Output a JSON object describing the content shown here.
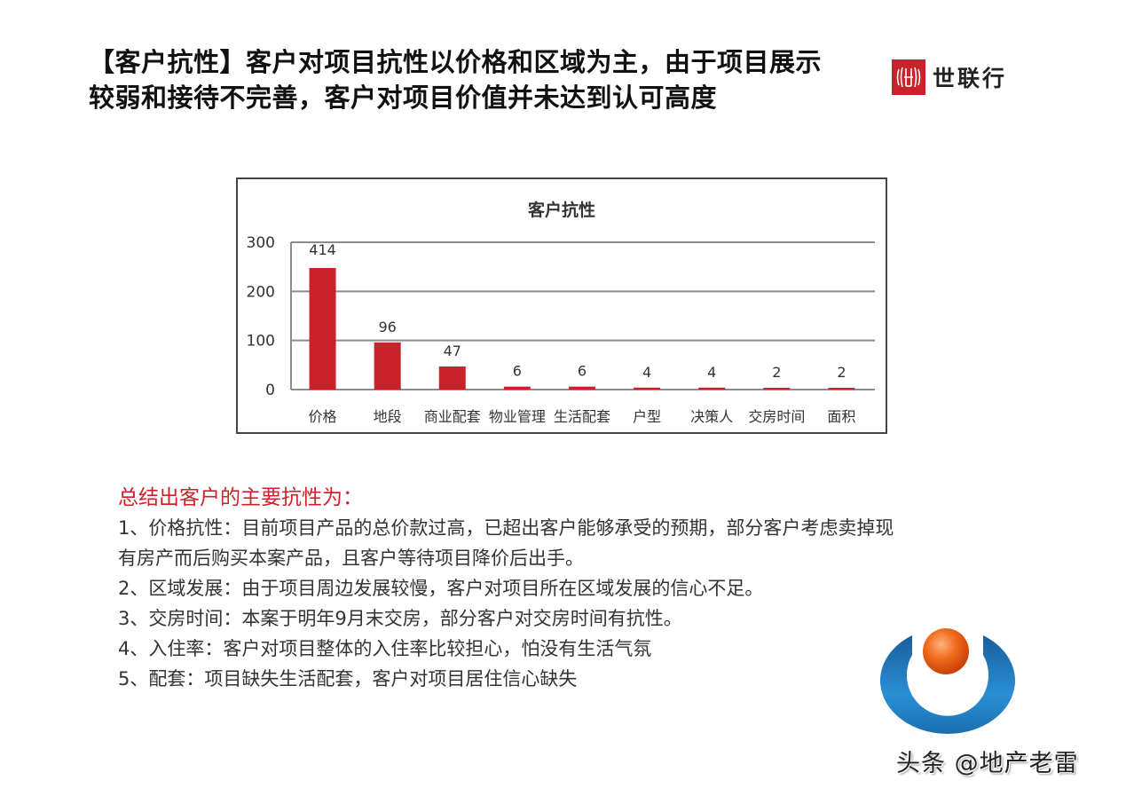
{
  "title": {
    "line1": "【客户抗性】客户对项目抗性以价格和区域为主，由于项目展示",
    "line2": "较弱和接待不完善，客户对项目价值并未达到认可高度"
  },
  "brand": {
    "name": "世联行",
    "mark_color": "#c8222a"
  },
  "chart_data": {
    "type": "bar",
    "title": "客户抗性",
    "categories": [
      "价格",
      "地段",
      "商业配套",
      "物业管理",
      "生活配套",
      "户型",
      "决策人",
      "交房时间",
      "面积"
    ],
    "values": [
      414,
      96,
      47,
      6,
      6,
      4,
      4,
      2,
      2
    ],
    "data_labels": [
      "414",
      "96",
      "47",
      "6",
      "6",
      "4",
      "4",
      "2",
      "2"
    ],
    "xlabel": "",
    "ylabel": "",
    "ylim": [
      0,
      300
    ],
    "yticks": [
      "0",
      "100",
      "200",
      "300"
    ],
    "grid": true,
    "legend": "none",
    "bar_color": "#c8222a",
    "note": "第一根柱（价格, 414）超出坐标轴上限，显示被截断"
  },
  "summary": {
    "heading": "总结出客户的主要抗性为：",
    "items": [
      "1、价格抗性：目前项目产品的总价款过高，已超出客户能够承受的预期，部分客户考虑卖掉现",
      "有房产而后购买本案产品，且客户等待项目降价后出手。",
      "2、区域发展：由于项目周边发展较慢，客户对项目所在区域发展的信心不足。",
      "3、交房时间：本案于明年9月末交房，部分客户对交房时间有抗性。",
      "4、入住率：客户对项目整体的入住率比较担心，怕没有生活气氛",
      "5、配套：项目缺失生活配套，客户对项目居住信心缺失"
    ]
  },
  "watermark": {
    "text": "头条 @地产老雷"
  },
  "colors": {
    "accent_red": "#d0212a",
    "logo_blue": "#1a6fb0",
    "logo_orange": "#f06a1c"
  }
}
